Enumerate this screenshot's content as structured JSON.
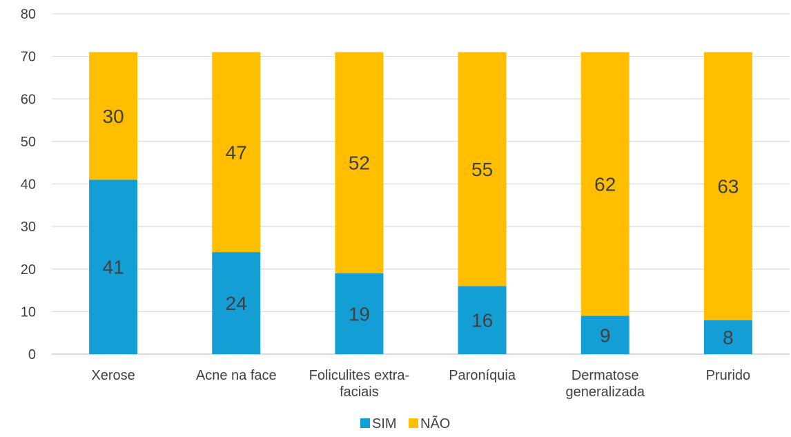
{
  "chart_data": {
    "type": "bar",
    "stacked": true,
    "categories": [
      [
        "Xerose"
      ],
      [
        "Acne na face"
      ],
      [
        "Foliculites extra-",
        "faciais"
      ],
      [
        "Paroníquia"
      ],
      [
        "Dermatose",
        "generalizada"
      ],
      [
        "Prurido"
      ]
    ],
    "series": [
      {
        "name": "SIM",
        "color": "#139fd5",
        "values": [
          41,
          24,
          19,
          16,
          9,
          8
        ]
      },
      {
        "name": "NÃO",
        "color": "#ffbf00",
        "values": [
          30,
          47,
          52,
          55,
          62,
          63
        ]
      }
    ],
    "ylim": [
      0,
      80
    ],
    "yticks": [
      0,
      10,
      20,
      30,
      40,
      50,
      60,
      70,
      80
    ],
    "grid": true,
    "legend_position": "bottom",
    "data_labels": true
  }
}
